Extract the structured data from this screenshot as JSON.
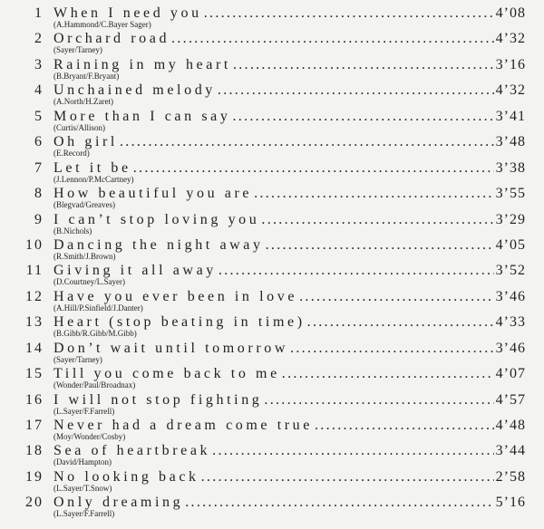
{
  "tracks": [
    {
      "n": "1",
      "title": "When I need you",
      "credit": "(A.Hammond/C.Bayer Sager)",
      "time": "4’08"
    },
    {
      "n": "2",
      "title": "Orchard road",
      "credit": "(Sayer/Tarney)",
      "time": "4’32"
    },
    {
      "n": "3",
      "title": "Raining in my heart",
      "credit": "(B.Bryant/F.Bryant)",
      "time": "3’16"
    },
    {
      "n": "4",
      "title": "Unchained melody",
      "credit": "(A.North/H.Zaret)",
      "time": "4’32"
    },
    {
      "n": "5",
      "title": "More than I can say",
      "credit": "(Curtis/Allison)",
      "time": "3’41"
    },
    {
      "n": "6",
      "title": "Oh girl",
      "credit": "(E.Record)",
      "time": "3’48"
    },
    {
      "n": "7",
      "title": "Let it be",
      "credit": "(J.Lennon/P.McCartney)",
      "time": "3’38"
    },
    {
      "n": "8",
      "title": "How beautiful you are",
      "credit": "(Blegvad/Greaves)",
      "time": "3’55"
    },
    {
      "n": "9",
      "title": "I can’t stop loving you",
      "credit": "(B.Nichols)",
      "time": "3’29"
    },
    {
      "n": "10",
      "title": "Dancing the night away",
      "credit": "(R.Smith/J.Brown)",
      "time": "4’05"
    },
    {
      "n": "11",
      "title": "Giving it all away",
      "credit": "(D.Courtney/L.Sayer)",
      "time": "3’52"
    },
    {
      "n": "12",
      "title": "Have you ever been in love",
      "credit": "(A.Hill/P.Sinfield/J.Danter)",
      "time": "3’46"
    },
    {
      "n": "13",
      "title": "Heart (stop beating in time)",
      "credit": "(B.Gibb/R.Gibb/M.Gibb)",
      "time": "4’33"
    },
    {
      "n": "14",
      "title": "Don’t wait until tomorrow",
      "credit": "(Sayer/Tarney)",
      "time": "3’46"
    },
    {
      "n": "15",
      "title": "Till you come back to me",
      "credit": "(Wonder/Paul/Broadnax)",
      "time": "4’07"
    },
    {
      "n": "16",
      "title": "I will not stop fighting",
      "credit": "(L.Sayer/F.Farrell)",
      "time": "4’57"
    },
    {
      "n": "17",
      "title": "Never had a dream come true",
      "credit": "(Moy/Wonder/Cosby)",
      "time": "4’48"
    },
    {
      "n": "18",
      "title": "Sea of heartbreak",
      "credit": "(David/Hampton)",
      "time": "3’44"
    },
    {
      "n": "19",
      "title": "No looking back",
      "credit": "(L.Sayer/T.Snow)",
      "time": "2’58"
    },
    {
      "n": "20",
      "title": "Only dreaming",
      "credit": "(L.Sayer/F.Farrell)",
      "time": "5’16"
    }
  ]
}
